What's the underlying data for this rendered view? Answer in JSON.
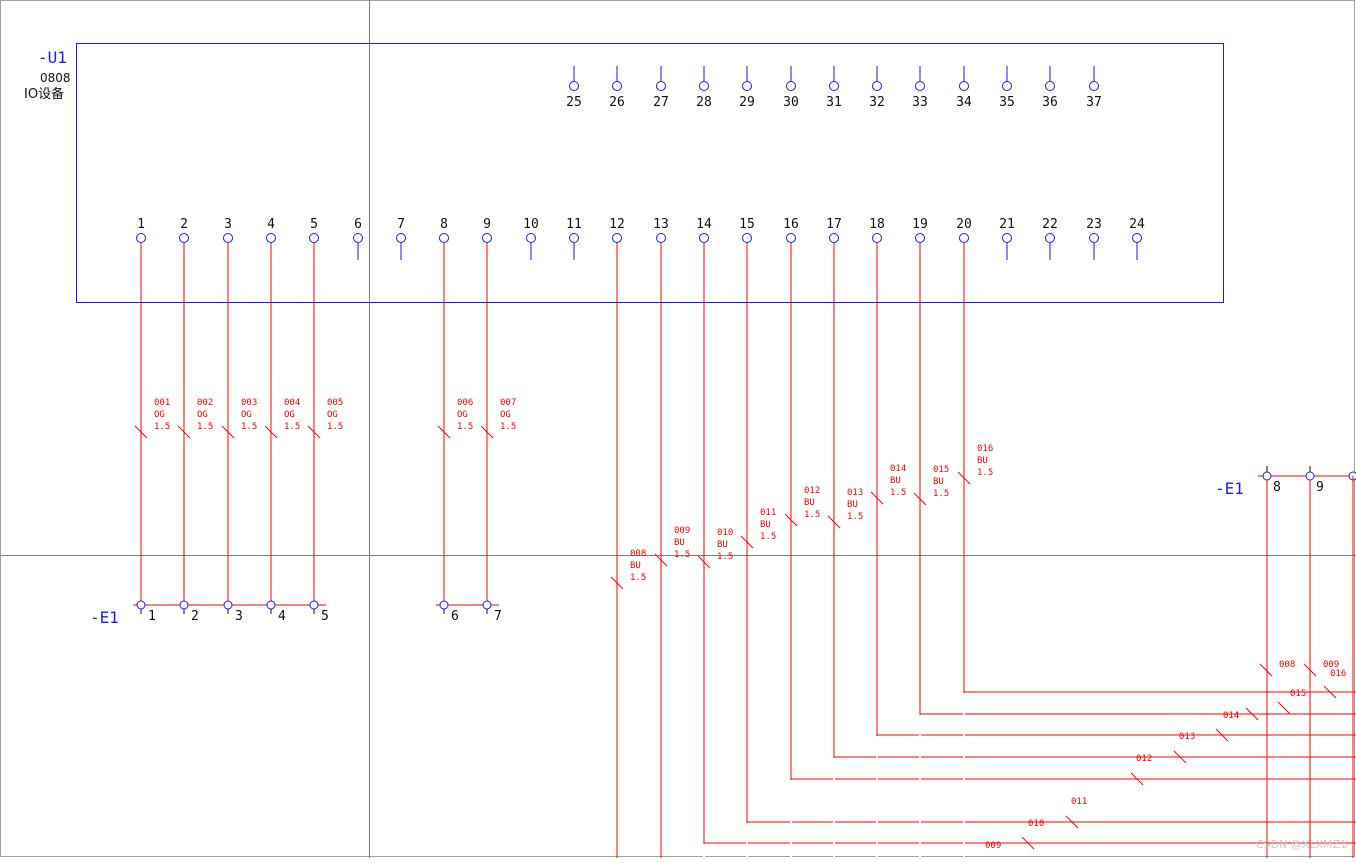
{
  "colors": {
    "frame": "#1a1aff",
    "wire": "#ff0000",
    "text": "#111111",
    "crosshair": "#808080",
    "border": "#a0a0a0"
  },
  "device": {
    "tag": "-U1",
    "model": "0808",
    "name": "IO设备",
    "top_pins": [
      "25",
      "26",
      "27",
      "28",
      "29",
      "30",
      "31",
      "32",
      "33",
      "34",
      "35",
      "36",
      "37"
    ],
    "bottom_pins": [
      "1",
      "2",
      "3",
      "4",
      "5",
      "6",
      "7",
      "8",
      "9",
      "10",
      "11",
      "12",
      "13",
      "14",
      "15",
      "16",
      "17",
      "18",
      "19",
      "20",
      "21",
      "22",
      "23",
      "24"
    ]
  },
  "terminal_strips": [
    {
      "tag": "-E1",
      "terminals": [
        "1",
        "2",
        "3",
        "4",
        "5"
      ]
    },
    {
      "tag": "",
      "terminals": [
        "6",
        "7"
      ]
    },
    {
      "tag": "-E1",
      "terminals": [
        "8",
        "9"
      ]
    }
  ],
  "wires": [
    {
      "pin": "1",
      "id": "001",
      "color": "OG",
      "size": "1.5"
    },
    {
      "pin": "2",
      "id": "002",
      "color": "OG",
      "size": "1.5"
    },
    {
      "pin": "3",
      "id": "003",
      "color": "OG",
      "size": "1.5"
    },
    {
      "pin": "4",
      "id": "004",
      "color": "OG",
      "size": "1.5"
    },
    {
      "pin": "5",
      "id": "005",
      "color": "OG",
      "size": "1.5"
    },
    {
      "pin": "8",
      "id": "006",
      "color": "OG",
      "size": "1.5"
    },
    {
      "pin": "9",
      "id": "007",
      "color": "OG",
      "size": "1.5"
    },
    {
      "pin": "12",
      "id": "008",
      "color": "BU",
      "size": "1.5"
    },
    {
      "pin": "13",
      "id": "009",
      "color": "BU",
      "size": "1.5"
    },
    {
      "pin": "14",
      "id": "010",
      "color": "BU",
      "size": "1.5"
    },
    {
      "pin": "15",
      "id": "011",
      "color": "BU",
      "size": "1.5"
    },
    {
      "pin": "16",
      "id": "012",
      "color": "BU",
      "size": "1.5"
    },
    {
      "pin": "17",
      "id": "013",
      "color": "BU",
      "size": "1.5"
    },
    {
      "pin": "18",
      "id": "014",
      "color": "BU",
      "size": "1.5"
    },
    {
      "pin": "19",
      "id": "015",
      "color": "BU",
      "size": "1.5"
    },
    {
      "pin": "20",
      "id": "016",
      "color": "BU",
      "size": "1.5"
    }
  ],
  "route_labels": [
    "016",
    "015",
    "014",
    "013",
    "012",
    "011",
    "010",
    "009"
  ],
  "right_strip_labels": [
    "008",
    "009",
    "016"
  ],
  "watermark": "CSDN @XLXMZ1"
}
